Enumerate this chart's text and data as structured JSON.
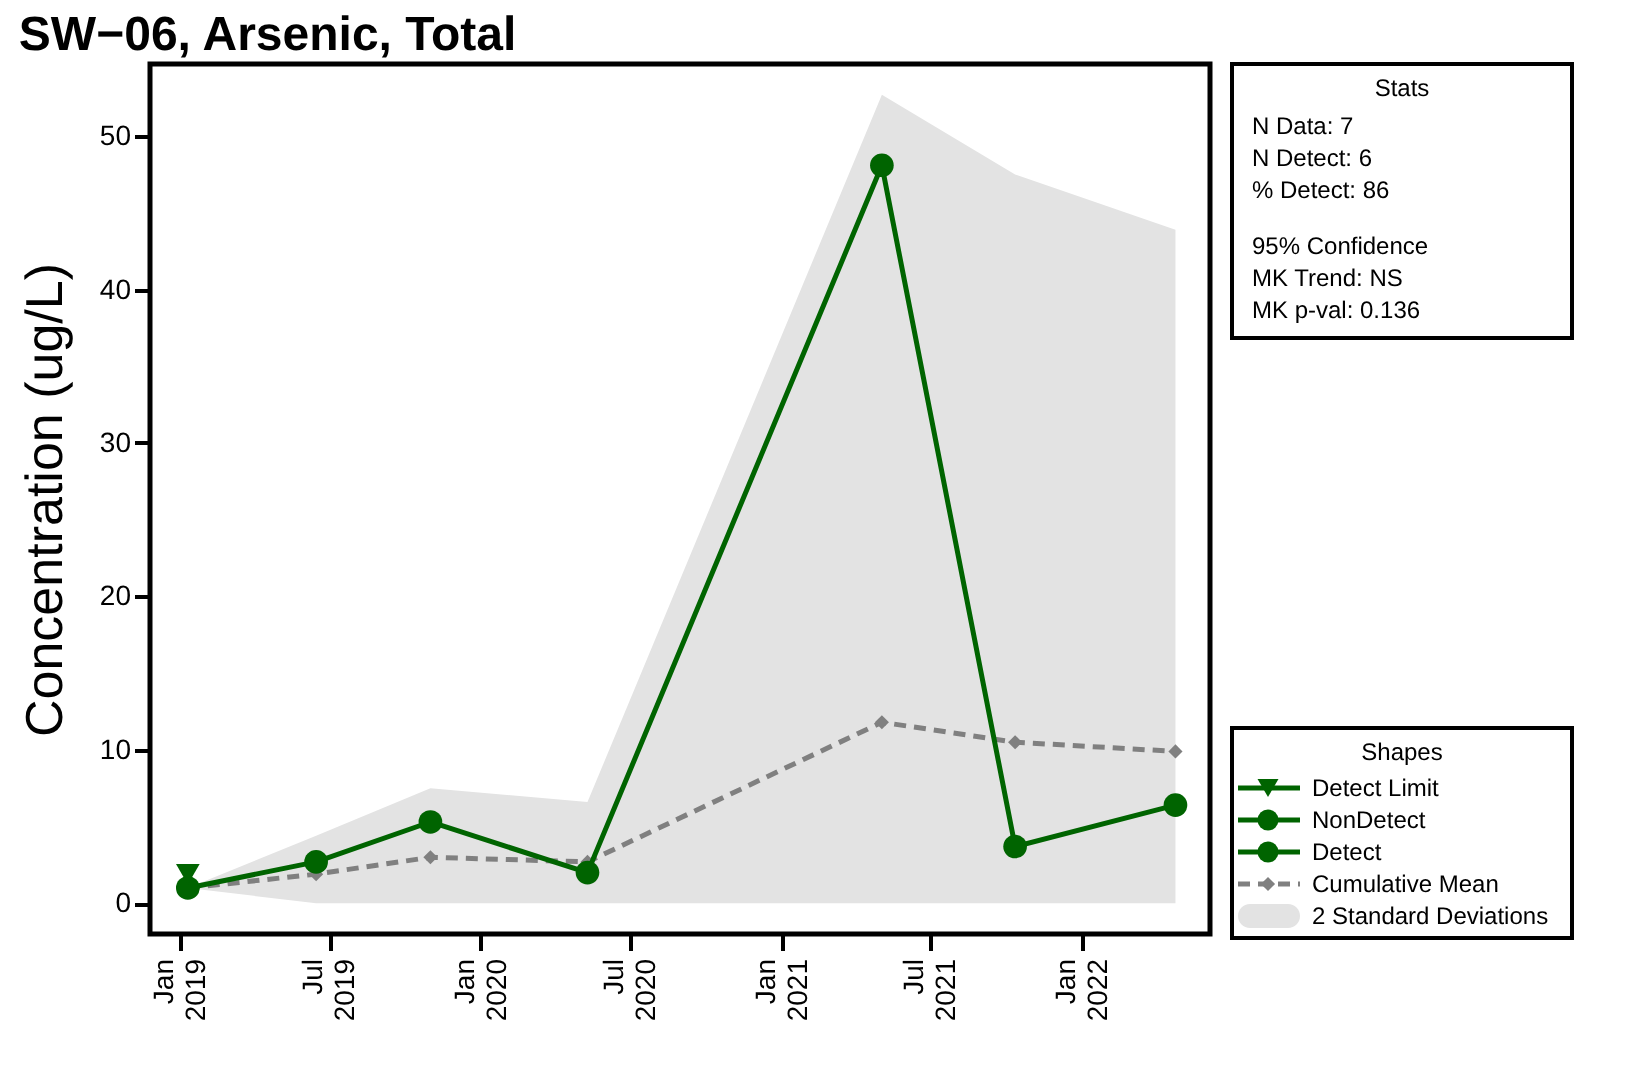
{
  "chart_data": {
    "type": "line",
    "title": "SW−06, Arsenic, Total",
    "ylabel": "Concentration (ug/L)",
    "legend_title": "Shapes",
    "legend": "right",
    "annotations": [
      "Stats",
      "N Data: 7",
      "N Detect: 6",
      "% Detect: 86",
      "95% Confidence",
      "MK Trend: NS",
      "MK p-val: 0.136",
      "2 Standard Deviations"
    ],
    "xlim": [
      "2018-11-25",
      "2022-06-06"
    ],
    "xticks": [
      {
        "value": "2019-01-01",
        "label": "Jan 2019"
      },
      {
        "value": "2019-07-01",
        "label": "Jul 2019"
      },
      {
        "value": "2020-01-01",
        "label": "Jan 2020"
      },
      {
        "value": "2020-07-01",
        "label": "Jul 2020"
      },
      {
        "value": "2021-01-01",
        "label": "Jan 2021"
      },
      {
        "value": "2021-07-01",
        "label": "Jul 2021"
      },
      {
        "value": "2022-01-01",
        "label": "Jan 2022"
      }
    ],
    "ylim": [
      -2,
      54.7
    ],
    "yticks": [
      0,
      10,
      20,
      30,
      40,
      50
    ],
    "series": [
      {
        "name": "Cumulative Mean",
        "color": "#808080",
        "line_style": "dashed",
        "marker": "diamond",
        "x": [
          "2019-01-10",
          "2019-06-15",
          "2019-11-01",
          "2020-05-10",
          "2021-05-03",
          "2021-10-12",
          "2022-04-25"
        ],
        "values": [
          1,
          1.9,
          3.0,
          2.7,
          11.8,
          10.5,
          9.9
        ],
        "lower": [
          1,
          0,
          0,
          0,
          0,
          0,
          0
        ],
        "upper": [
          1,
          4.4,
          7.5,
          6.6,
          52.7,
          47.5,
          43.9
        ]
      },
      {
        "color": "#006400",
        "marker": "none",
        "x": [
          "2019-01-10",
          "2019-06-15",
          "2019-11-01",
          "2020-05-10",
          "2021-05-03",
          "2021-10-12",
          "2022-04-25"
        ],
        "values": [
          1,
          2.7,
          5.3,
          2.0,
          48.1,
          3.7,
          6.4
        ]
      },
      {
        "name": "Detect",
        "type": "scatter",
        "color": "#006400",
        "marker": "circle",
        "x": [
          "2019-06-15",
          "2019-11-01",
          "2020-05-10",
          "2021-05-03",
          "2021-10-12",
          "2022-04-25"
        ],
        "values": [
          2.7,
          5.3,
          2.0,
          48.1,
          3.7,
          6.4
        ]
      },
      {
        "name": "NonDetect",
        "type": "scatter",
        "color": "#006400",
        "marker": "circle",
        "x": [
          "2019-01-10"
        ],
        "values": [
          1
        ]
      },
      {
        "name": "Detect Limit",
        "type": "scatter",
        "color": "#006400",
        "marker": "triangle",
        "x": [
          "2019-01-10"
        ],
        "values": [
          1.9
        ]
      }
    ]
  }
}
